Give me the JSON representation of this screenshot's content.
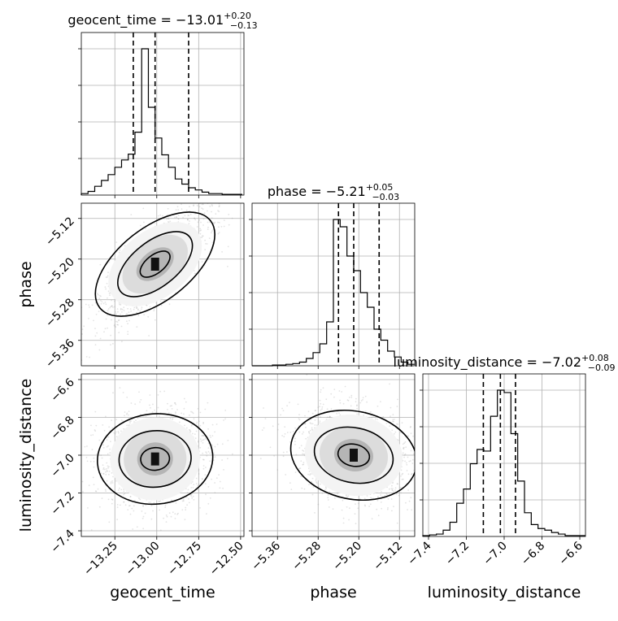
{
  "chart_data": {
    "type": "corner",
    "grid": true,
    "parameters": [
      {
        "name": "geocent_time",
        "median": -13.01,
        "err_plus": "0.20",
        "err_minus": "0.13",
        "range": [
          -13.45,
          -12.48
        ],
        "ticks": [
          -13.25,
          -13.0,
          -12.75,
          -12.5
        ],
        "tick_labels": [
          "−13.25",
          "−13.00",
          "−12.75",
          "−12.50"
        ],
        "quantiles": [
          -13.14,
          -13.01,
          -12.81
        ],
        "hist_edges": [
          -13.45,
          -13.41,
          -13.37,
          -13.33,
          -13.29,
          -13.25,
          -13.21,
          -13.17,
          -13.13,
          -13.09,
          -13.05,
          -13.01,
          -12.97,
          -12.93,
          -12.89,
          -12.85,
          -12.81,
          -12.77,
          -12.73,
          -12.69,
          -12.65,
          -12.61,
          -12.57,
          -12.53,
          -12.49
        ],
        "hist_counts": [
          2,
          5,
          12,
          20,
          28,
          38,
          48,
          56,
          86,
          200,
          120,
          78,
          55,
          38,
          22,
          15,
          10,
          7,
          4,
          2,
          2,
          1,
          1,
          1
        ]
      },
      {
        "name": "phase",
        "median": -5.21,
        "err_plus": "0.05",
        "err_minus": "0.03",
        "range": [
          -5.41,
          -5.09
        ],
        "ticks": [
          -5.36,
          -5.28,
          -5.2,
          -5.12
        ],
        "tick_labels": [
          "−5.36",
          "−5.28",
          "−5.20",
          "−5.12"
        ],
        "quantiles": [
          -5.24,
          -5.21,
          -5.16
        ],
        "hist_edges": [
          -5.41,
          -5.3967,
          -5.3833,
          -5.37,
          -5.3567,
          -5.3433,
          -5.33,
          -5.3167,
          -5.3033,
          -5.29,
          -5.2767,
          -5.2633,
          -5.25,
          -5.2367,
          -5.2233,
          -5.21,
          -5.1967,
          -5.1833,
          -5.17,
          -5.1567,
          -5.1433,
          -5.13,
          -5.1167,
          -5.1033,
          -5.09
        ],
        "hist_counts": [
          0,
          0,
          0,
          1,
          1,
          2,
          3,
          5,
          10,
          18,
          30,
          60,
          200,
          190,
          150,
          130,
          100,
          80,
          50,
          35,
          20,
          12,
          5,
          2
        ]
      },
      {
        "name": "luminosity_distance",
        "median": -7.02,
        "err_plus": "0.08",
        "err_minus": "0.09",
        "range": [
          -7.43,
          -6.57
        ],
        "ticks": [
          -7.4,
          -7.2,
          -7.0,
          -6.8,
          -6.6
        ],
        "tick_labels": [
          "−7.4",
          "−7.2",
          "−7.0",
          "−6.8",
          "−6.6"
        ],
        "quantiles": [
          -7.11,
          -7.02,
          -6.94
        ],
        "hist_edges": [
          -7.43,
          -7.3942,
          -7.3583,
          -7.3225,
          -7.2867,
          -7.2508,
          -7.215,
          -7.1792,
          -7.1433,
          -7.1075,
          -7.0717,
          -7.0358,
          -7.0,
          -6.9642,
          -6.9283,
          -6.8925,
          -6.8567,
          -6.8208,
          -6.785,
          -6.7492,
          -6.7133,
          -6.6775,
          -6.6417,
          -6.6058,
          -6.57
        ],
        "hist_counts": [
          1,
          2,
          3,
          8,
          18,
          42,
          60,
          92,
          110,
          108,
          152,
          185,
          182,
          130,
          70,
          30,
          15,
          10,
          8,
          5,
          3,
          1,
          1,
          1
        ]
      }
    ],
    "titles": [
      {
        "text": "geocent_time = −13.01",
        "sup": "+0.20",
        "sub": "−0.13"
      },
      {
        "text": "phase = −5.21",
        "sup": "+0.05",
        "sub": "−0.03"
      },
      {
        "text": "luminosity_distance = −7.02",
        "sup": "+0.08",
        "sub": "−0.09"
      }
    ],
    "axis_labels": {
      "x": [
        "geocent_time",
        "phase",
        "luminosity_distance"
      ],
      "y": [
        "phase",
        "luminosity_distance"
      ]
    },
    "correlations": {
      "phase|geocent_time": 0.75,
      "luminosity_distance|geocent_time": 0.1,
      "luminosity_distance|phase": -0.25
    },
    "spreads": {
      "geocent_time": 0.13,
      "phase": 0.045,
      "luminosity_distance": 0.1
    },
    "peaks": {
      "phase|geocent_time": {
        "x": -13.01,
        "y": -5.21
      },
      "luminosity_distance|geocent_time": {
        "x": -13.01,
        "y": -7.02
      },
      "luminosity_distance|phase": {
        "x": -5.21,
        "y": -7.0
      }
    },
    "contour_levels": [
      0.4,
      1.0,
      1.6
    ]
  }
}
